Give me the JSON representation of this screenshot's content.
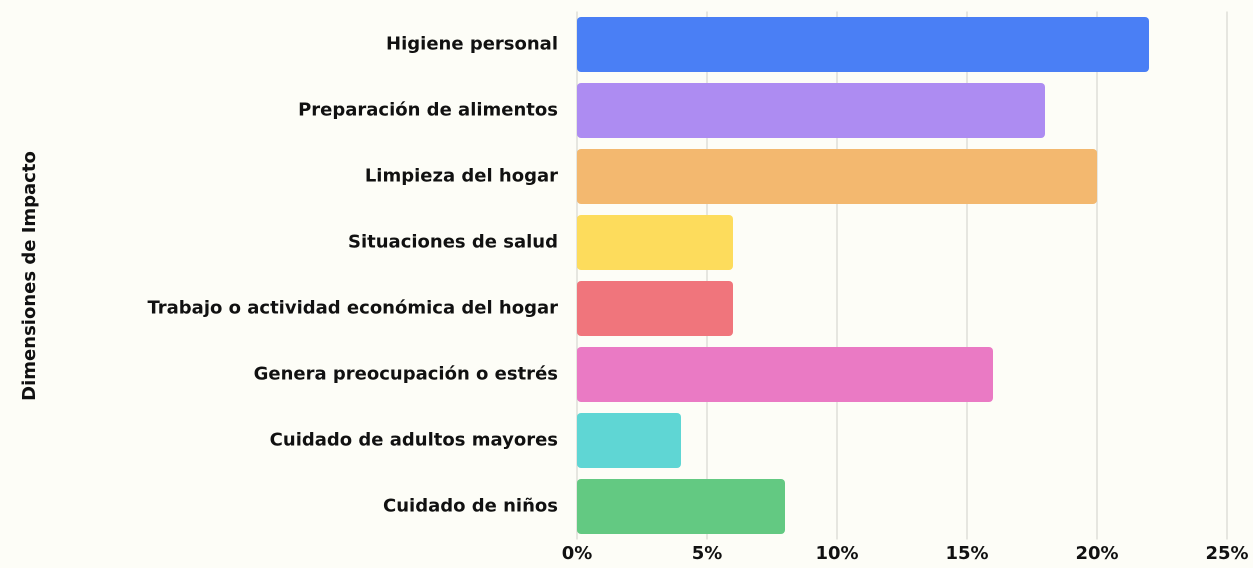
{
  "chart_data": {
    "type": "bar",
    "orientation": "horizontal",
    "ylabel": "Dimensiones de Impacto",
    "categories": [
      "Higiene personal",
      "Preparación de alimentos",
      "Limpieza del hogar",
      "Situaciones de salud",
      "Trabajo o actividad económica del hogar",
      "Genera preocupación o estrés",
      "Cuidado de adultos mayores",
      "Cuidado de niños"
    ],
    "values": [
      22,
      18,
      20,
      6,
      6,
      16,
      4,
      8
    ],
    "colors": [
      "#4a7ff5",
      "#ad8cf2",
      "#f3b86f",
      "#fddc5c",
      "#f0757c",
      "#ea7ac4",
      "#5fd6d4",
      "#63c982"
    ],
    "xlim": [
      0,
      25
    ],
    "xticks": [
      {
        "value": 0,
        "label": "0%"
      },
      {
        "value": 5,
        "label": "5%"
      },
      {
        "value": 10,
        "label": "10%"
      },
      {
        "value": 15,
        "label": "15%"
      },
      {
        "value": 20,
        "label": "20%"
      },
      {
        "value": 25,
        "label": "25%"
      }
    ],
    "grid": true
  }
}
